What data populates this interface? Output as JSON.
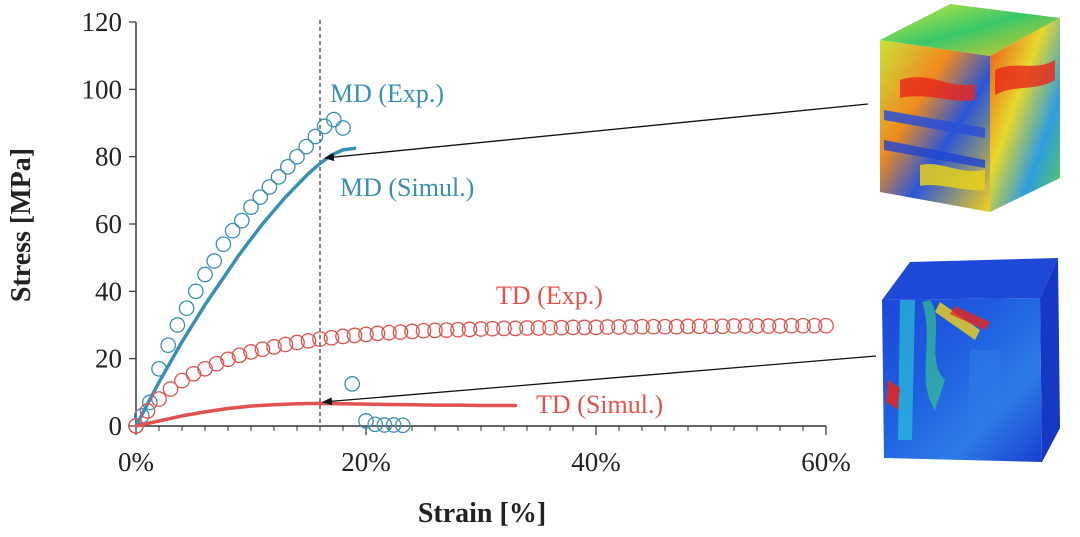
{
  "chart_data": {
    "type": "scatter",
    "title": "",
    "xlabel": "Strain [%]",
    "ylabel": "Stress [MPa]",
    "xlim": [
      0,
      60
    ],
    "ylim": [
      0,
      120
    ],
    "x_ticks": [
      0,
      20,
      40,
      60
    ],
    "x_tick_labels": [
      "0%",
      "20%",
      "40%",
      "60%"
    ],
    "x_minor_ticks": [
      2,
      4,
      6,
      8,
      10,
      12,
      14,
      16,
      18,
      22,
      24,
      26,
      28,
      30,
      32,
      34,
      36,
      38,
      42,
      44,
      46,
      48,
      50,
      52,
      54,
      56,
      58
    ],
    "y_ticks": [
      0,
      20,
      40,
      60,
      80,
      100,
      120
    ],
    "y_tick_labels": [
      "0",
      "20",
      "40",
      "60",
      "80",
      "100",
      "120"
    ],
    "grid": false,
    "reference_line": {
      "x": 16,
      "style": "dashed"
    },
    "colors": {
      "md": "#3a8fb7",
      "td": "#e0524d",
      "axis": "#333333"
    },
    "series": [
      {
        "name": "MD (Exp.)",
        "label": "MD (Exp.)",
        "kind": "markers",
        "color": "#3a8fb7",
        "x": [
          0,
          0.5,
          1.2,
          2.0,
          2.8,
          3.6,
          4.4,
          5.2,
          6.0,
          6.8,
          7.6,
          8.4,
          9.2,
          10.0,
          10.8,
          11.6,
          12.4,
          13.2,
          14.0,
          14.8,
          15.6,
          16.4,
          17.2,
          18.0,
          18.8,
          20.0,
          20.8,
          21.6,
          22.4,
          23.2
        ],
        "y": [
          0,
          3,
          7,
          17,
          24,
          30,
          35,
          40,
          45,
          49,
          54,
          58,
          61,
          65,
          68,
          71,
          74,
          77,
          80,
          83,
          86,
          89,
          91,
          88.5,
          12.5,
          1.5,
          0.5,
          0.3,
          0.3,
          0.2
        ]
      },
      {
        "name": "MD (Simul.)",
        "label": "MD (Simul.)",
        "kind": "line",
        "color": "#3a8fb7",
        "x": [
          0,
          1,
          2,
          3,
          4,
          5,
          6,
          7,
          8,
          9,
          10,
          11,
          12,
          13,
          14,
          15,
          16,
          17,
          18,
          19
        ],
        "y": [
          0,
          6.5,
          13,
          19,
          25,
          30.5,
          36,
          41,
          46,
          51,
          55.5,
          60,
          64,
          68,
          71.5,
          75,
          78,
          80.5,
          82,
          82.5
        ]
      },
      {
        "name": "TD (Exp.)",
        "label": "TD (Exp.)",
        "kind": "markers",
        "color": "#e0524d",
        "x": [
          0,
          1,
          2,
          3,
          4,
          5,
          6,
          7,
          8,
          9,
          10,
          11,
          12,
          13,
          14,
          15,
          16,
          17,
          18,
          19,
          20,
          21,
          22,
          23,
          24,
          25,
          26,
          27,
          28,
          29,
          30,
          31,
          32,
          33,
          34,
          35,
          36,
          37,
          38,
          39,
          40,
          41,
          42,
          43,
          44,
          45,
          46,
          47,
          48,
          49,
          50,
          51,
          52,
          53,
          54,
          55,
          56,
          57,
          58,
          59,
          60
        ],
        "y": [
          0,
          4.5,
          8,
          11,
          13.5,
          15.5,
          17,
          18.5,
          19.8,
          21,
          22,
          22.8,
          23.5,
          24.2,
          24.8,
          25.3,
          25.8,
          26.2,
          26.6,
          26.9,
          27.2,
          27.5,
          27.7,
          27.9,
          28.1,
          28.3,
          28.4,
          28.5,
          28.6,
          28.7,
          28.8,
          28.9,
          29,
          29,
          29.1,
          29.1,
          29.2,
          29.2,
          29.3,
          29.3,
          29.3,
          29.4,
          29.4,
          29.4,
          29.5,
          29.5,
          29.5,
          29.5,
          29.6,
          29.6,
          29.6,
          29.6,
          29.7,
          29.7,
          29.7,
          29.7,
          29.7,
          29.8,
          29.8,
          29.8,
          29.8
        ]
      },
      {
        "name": "TD (Simul.)",
        "label": "TD (Simul.)",
        "kind": "line",
        "color": "#e0524d",
        "x": [
          0,
          2,
          4,
          6,
          8,
          10,
          12,
          14,
          16,
          18,
          20,
          22,
          24,
          26,
          28,
          30,
          33
        ],
        "y": [
          0,
          1.5,
          3,
          4.2,
          5.2,
          5.9,
          6.3,
          6.6,
          6.7,
          6.6,
          6.5,
          6.4,
          6.3,
          6.2,
          6.2,
          6.1,
          6.1
        ]
      }
    ]
  }
}
